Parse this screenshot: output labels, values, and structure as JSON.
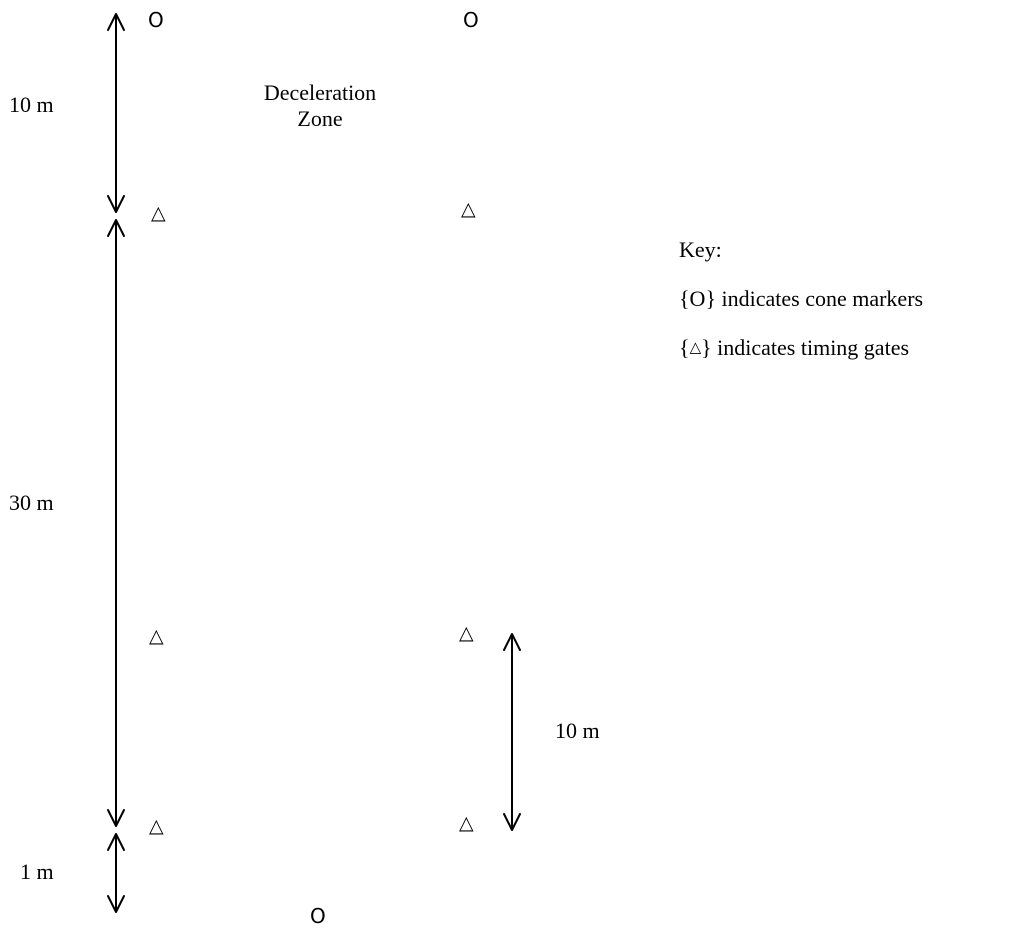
{
  "distances": {
    "top": "10 m",
    "main": "30 m",
    "split": "10 m",
    "bottom": "1 m"
  },
  "zone": {
    "line1": "Deceleration",
    "line2": "Zone"
  },
  "key": {
    "title": "Key:",
    "cone_line": "{O} indicates cone markers",
    "gate_line_prefix": "{",
    "gate_line_suffix": "} indicates timing gates"
  },
  "symbols": {
    "cone": "O",
    "gate": "△"
  }
}
